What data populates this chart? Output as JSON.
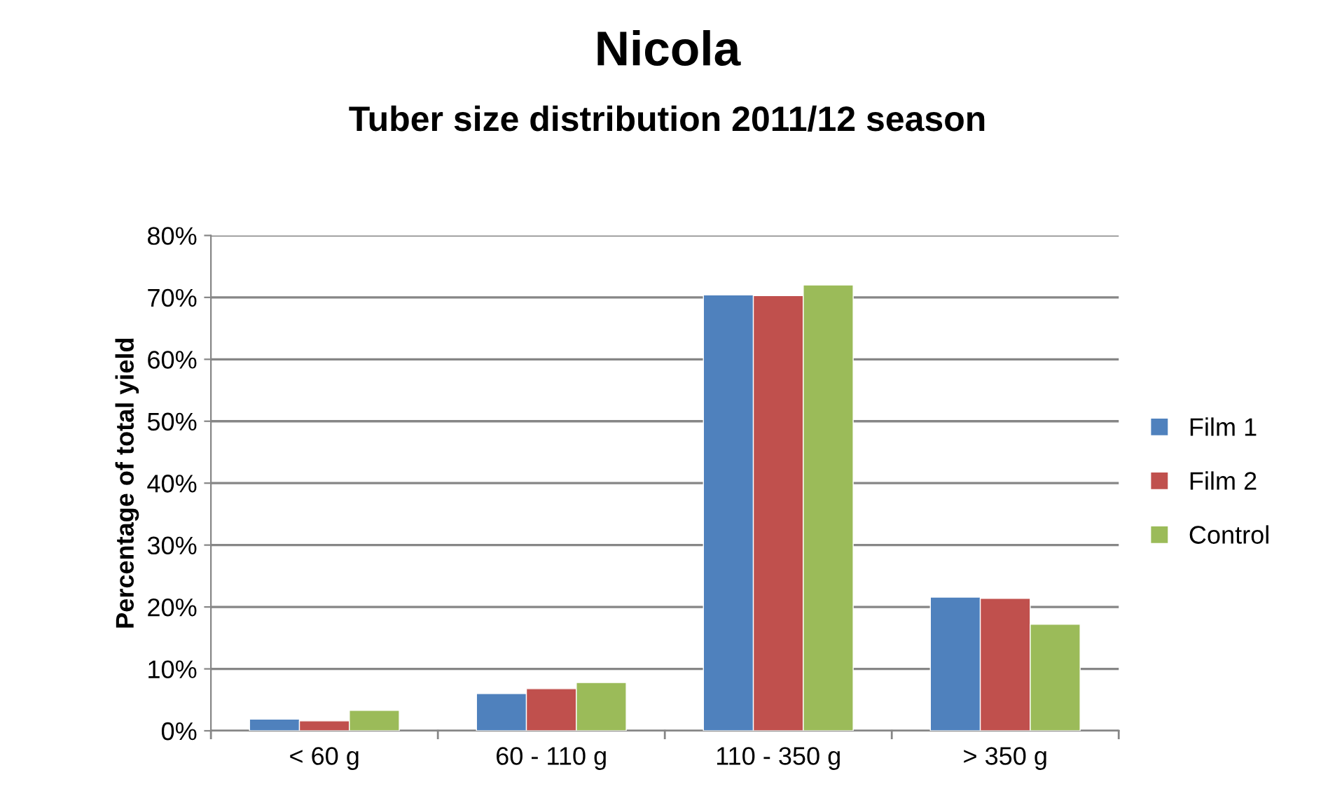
{
  "chart_data": {
    "type": "bar",
    "title": "Nicola",
    "subtitle": "Tuber size distribution 2011/12 season",
    "ylabel": "Percentage of total yield",
    "categories": [
      "< 60 g",
      "60 - 110 g",
      "110 - 350 g",
      "> 350 g"
    ],
    "series": [
      {
        "name": "Film 1",
        "color": "#4f81bd",
        "values": [
          1.9,
          6.0,
          70.4,
          21.6
        ]
      },
      {
        "name": "Film 2",
        "color": "#c0504d",
        "values": [
          1.6,
          6.8,
          70.3,
          21.4
        ]
      },
      {
        "name": "Control",
        "color": "#9bbb59",
        "values": [
          3.3,
          7.8,
          72.0,
          17.2
        ]
      }
    ],
    "ylim": [
      0,
      80
    ],
    "yticks": [
      {
        "value": 0,
        "label": "0%"
      },
      {
        "value": 10,
        "label": "10%"
      },
      {
        "value": 20,
        "label": "20%"
      },
      {
        "value": 30,
        "label": "30%"
      },
      {
        "value": 40,
        "label": "40%"
      },
      {
        "value": 50,
        "label": "50%"
      },
      {
        "value": 60,
        "label": "60%"
      },
      {
        "value": 70,
        "label": "70%"
      },
      {
        "value": 80,
        "label": "80%"
      }
    ],
    "grid": "y",
    "legend": "right"
  }
}
